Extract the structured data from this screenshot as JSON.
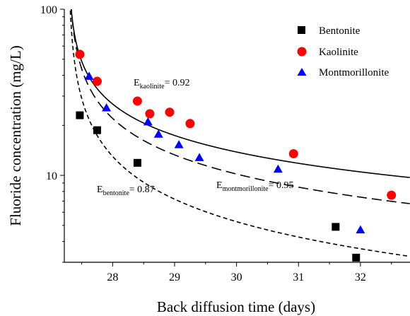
{
  "chart_data": {
    "type": "scatter",
    "title": "",
    "xlabel": "Back diffusion time (days)",
    "ylabel": "Fluoride concentration (mg/L)",
    "xlim": [
      27.22,
      32.8
    ],
    "ylim": [
      3,
      100
    ],
    "yscale": "log",
    "x_ticks": [
      28,
      29,
      30,
      31,
      32
    ],
    "y_ticks": [
      10,
      100
    ],
    "grid": false,
    "legend_position": "top-right",
    "series": [
      {
        "name": "Bentonite",
        "marker": "square",
        "color": "#000000",
        "x": [
          27.47,
          27.75,
          28.4,
          31.6,
          31.93
        ],
        "y": [
          23,
          18.7,
          11.9,
          4.9,
          3.2
        ]
      },
      {
        "name": "Kaolinite",
        "marker": "circle",
        "color": "#ff0000",
        "x": [
          27.47,
          27.75,
          28.4,
          28.6,
          28.92,
          29.25,
          30.92,
          32.5
        ],
        "y": [
          53.5,
          36.8,
          28,
          23.5,
          24,
          20.5,
          13.5,
          7.6
        ]
      },
      {
        "name": "Montmorillonite",
        "marker": "triangle",
        "color": "#0000ff",
        "x": [
          27.62,
          27.9,
          28.57,
          28.74,
          29.07,
          29.4,
          30.67,
          32
        ],
        "y": [
          39.5,
          25.5,
          21,
          17.7,
          15.3,
          12.8,
          10.9,
          4.7
        ]
      }
    ],
    "curves": [
      {
        "key": "kaolinite",
        "style": "solid",
        "label_main": "E",
        "label_sub": "kaolinite",
        "label_value": "= 0.92"
      },
      {
        "key": "montmorillonite",
        "style": "long-dash",
        "label_main": "E",
        "label_sub": "montmorillonite",
        "label_value": "= 0.95"
      },
      {
        "key": "bentonite",
        "style": "short-dash",
        "label_main": "E",
        "label_sub": "bentonite",
        "label_value": "= 0.87"
      }
    ]
  }
}
